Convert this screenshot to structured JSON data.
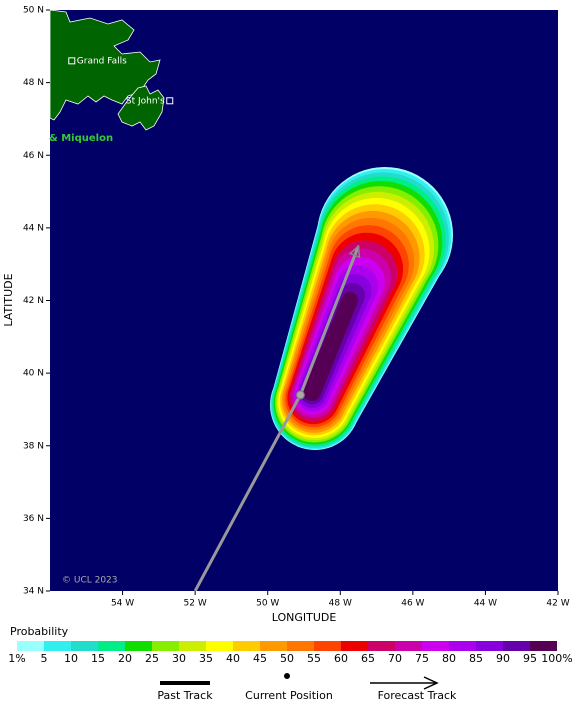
{
  "chart_data": {
    "type": "probability_map",
    "xlabel": "LONGITUDE",
    "ylabel": "LATITUDE",
    "xlim": [
      -56,
      -42
    ],
    "ylim": [
      34,
      50
    ],
    "xticks": [
      {
        "value": -54,
        "label": "54 W"
      },
      {
        "value": -52,
        "label": "52 W"
      },
      {
        "value": -50,
        "label": "50 W"
      },
      {
        "value": -48,
        "label": "48 W"
      },
      {
        "value": -46,
        "label": "46 W"
      },
      {
        "value": -44,
        "label": "44 W"
      },
      {
        "value": -42,
        "label": "42 W"
      }
    ],
    "yticks": [
      {
        "value": 34,
        "label": "34 N"
      },
      {
        "value": 36,
        "label": "36 N"
      },
      {
        "value": 38,
        "label": "38 N"
      },
      {
        "value": 40,
        "label": "40 N"
      },
      {
        "value": 42,
        "label": "42 N"
      },
      {
        "value": 44,
        "label": "44 N"
      },
      {
        "value": 46,
        "label": "46 N"
      },
      {
        "value": 48,
        "label": "48 N"
      },
      {
        "value": 50,
        "label": "50 N"
      }
    ],
    "legend_title": "Probability",
    "levels": [
      {
        "value": 1,
        "label": "1%"
      },
      5,
      10,
      15,
      20,
      25,
      30,
      35,
      40,
      45,
      50,
      55,
      60,
      65,
      70,
      75,
      80,
      85,
      90,
      95,
      {
        "value": 100,
        "label": "100%"
      }
    ],
    "level_colors": [
      "#99ffff",
      "#33eeee",
      "#22ddcc",
      "#00ee88",
      "#11dd00",
      "#88ee00",
      "#ccee00",
      "#ffff00",
      "#ffcc00",
      "#ff9900",
      "#ff7700",
      "#ff4400",
      "#ee0000",
      "#cc0066",
      "#cc00aa",
      "#cc00ee",
      "#aa00ee",
      "#8800dd",
      "#6600aa",
      "#550055"
    ],
    "places": [
      {
        "name": "Grand Falls",
        "lon": -55.4,
        "lat": 48.6
      },
      {
        "name": "St John's",
        "lon": -52.7,
        "lat": 47.5
      }
    ],
    "region_label": "& Miquelon",
    "credit": "© UCL 2023",
    "past_track": {
      "name": "Past Track",
      "lon": [
        -52.0,
        -49.1
      ],
      "lat": [
        34.0,
        39.4
      ]
    },
    "current_position": {
      "name": "Current Position",
      "lon": -49.1,
      "lat": 39.4
    },
    "forecast_track": {
      "name": "Forecast Track",
      "lon": [
        -49.1,
        -47.5
      ],
      "lat": [
        39.4,
        43.5
      ]
    },
    "track_color": "#999999",
    "background": "#000066",
    "land_color": "#006400"
  }
}
